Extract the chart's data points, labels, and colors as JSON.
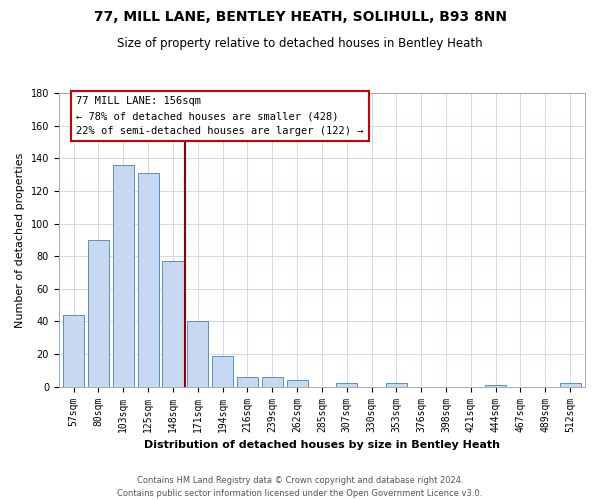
{
  "title": "77, MILL LANE, BENTLEY HEATH, SOLIHULL, B93 8NN",
  "subtitle": "Size of property relative to detached houses in Bentley Heath",
  "xlabel": "Distribution of detached houses by size in Bentley Heath",
  "ylabel": "Number of detached properties",
  "bar_labels": [
    "57sqm",
    "80sqm",
    "103sqm",
    "125sqm",
    "148sqm",
    "171sqm",
    "194sqm",
    "216sqm",
    "239sqm",
    "262sqm",
    "285sqm",
    "307sqm",
    "330sqm",
    "353sqm",
    "376sqm",
    "398sqm",
    "421sqm",
    "444sqm",
    "467sqm",
    "489sqm",
    "512sqm"
  ],
  "bar_values": [
    44,
    90,
    136,
    131,
    77,
    40,
    19,
    6,
    6,
    4,
    0,
    2,
    0,
    2,
    0,
    0,
    0,
    1,
    0,
    0,
    2
  ],
  "bar_color": "#c6d9f0",
  "bar_edge_color": "#5a8fc3",
  "vline_x": 4.5,
  "vline_color": "#8b0000",
  "annotation_line1": "77 MILL LANE: 156sqm",
  "annotation_line2": "← 78% of detached houses are smaller (428)",
  "annotation_line3": "22% of semi-detached houses are larger (122) →",
  "ylim": [
    0,
    180
  ],
  "yticks": [
    0,
    20,
    40,
    60,
    80,
    100,
    120,
    140,
    160,
    180
  ],
  "footnote": "Contains HM Land Registry data © Crown copyright and database right 2024.\nContains public sector information licensed under the Open Government Licence v3.0.",
  "background_color": "#ffffff",
  "grid_color": "#c8d4e8",
  "title_fontsize": 10,
  "subtitle_fontsize": 8.5,
  "axis_label_fontsize": 8,
  "tick_fontsize": 7,
  "annotation_fontsize": 7.5,
  "footnote_fontsize": 6
}
